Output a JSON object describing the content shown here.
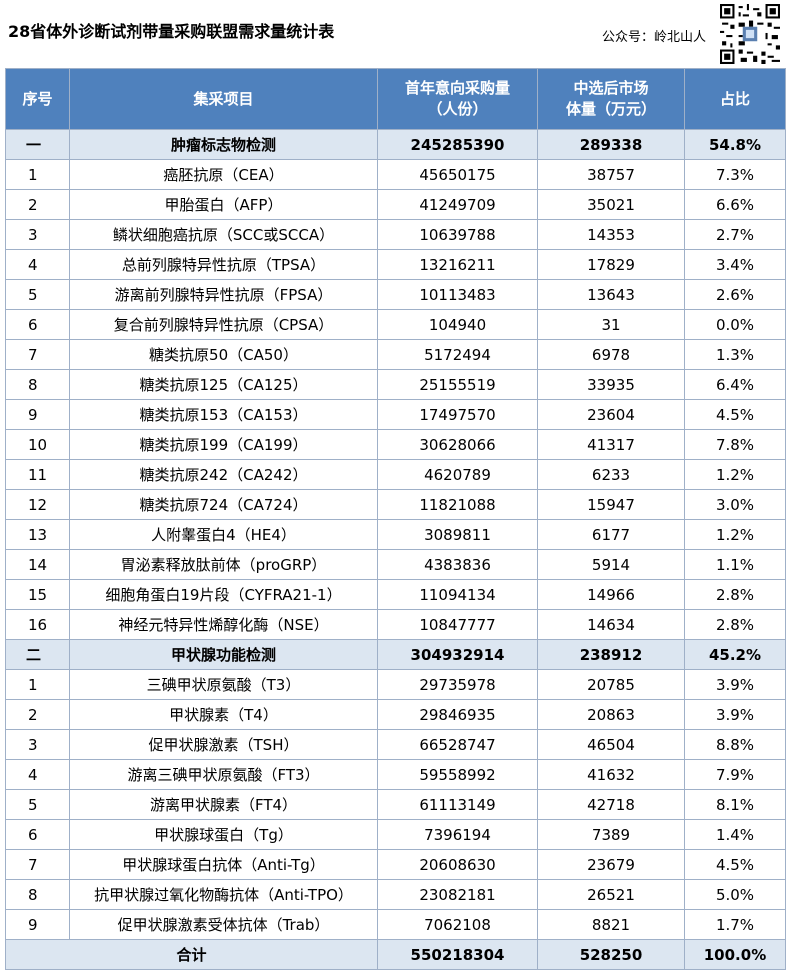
{
  "title": "28省体外诊断试剂带量采购联盟需求量统计表",
  "account": "公众号：岭北山人",
  "headers": {
    "seq": "序号",
    "item": "集采项目",
    "demand_line1": "首年意向采购量",
    "demand_line2": "（人份）",
    "market_line1": "中选后市场",
    "market_line2": "体量（万元）",
    "share": "占比"
  },
  "sections": [
    {
      "seq": "一",
      "item": "肿瘤标志物检测",
      "demand": "245285390",
      "market": "289338",
      "share": "54.8%",
      "rows": [
        {
          "seq": "1",
          "item": "癌胚抗原（CEA）",
          "demand": "45650175",
          "market": "38757",
          "share": "7.3%"
        },
        {
          "seq": "2",
          "item": "甲胎蛋白（AFP）",
          "demand": "41249709",
          "market": "35021",
          "share": "6.6%"
        },
        {
          "seq": "3",
          "item": "鳞状细胞癌抗原（SCC或SCCA）",
          "demand": "10639788",
          "market": "14353",
          "share": "2.7%"
        },
        {
          "seq": "4",
          "item": "总前列腺特异性抗原（TPSA）",
          "demand": "13216211",
          "market": "17829",
          "share": "3.4%"
        },
        {
          "seq": "5",
          "item": "游离前列腺特异性抗原（FPSA）",
          "demand": "10113483",
          "market": "13643",
          "share": "2.6%"
        },
        {
          "seq": "6",
          "item": "复合前列腺特异性抗原（CPSA）",
          "demand": "104940",
          "market": "31",
          "share": "0.0%"
        },
        {
          "seq": "7",
          "item": "糖类抗原50（CA50）",
          "demand": "5172494",
          "market": "6978",
          "share": "1.3%"
        },
        {
          "seq": "8",
          "item": "糖类抗原125（CA125）",
          "demand": "25155519",
          "market": "33935",
          "share": "6.4%"
        },
        {
          "seq": "9",
          "item": "糖类抗原153（CA153）",
          "demand": "17497570",
          "market": "23604",
          "share": "4.5%"
        },
        {
          "seq": "10",
          "item": "糖类抗原199（CA199）",
          "demand": "30628066",
          "market": "41317",
          "share": "7.8%"
        },
        {
          "seq": "11",
          "item": "糖类抗原242（CA242）",
          "demand": "4620789",
          "market": "6233",
          "share": "1.2%"
        },
        {
          "seq": "12",
          "item": "糖类抗原724（CA724）",
          "demand": "11821088",
          "market": "15947",
          "share": "3.0%"
        },
        {
          "seq": "13",
          "item": "人附睾蛋白4（HE4）",
          "demand": "3089811",
          "market": "6177",
          "share": "1.2%"
        },
        {
          "seq": "14",
          "item": "胃泌素释放肽前体（proGRP）",
          "demand": "4383836",
          "market": "5914",
          "share": "1.1%"
        },
        {
          "seq": "15",
          "item": "细胞角蛋白19片段（CYFRA21-1）",
          "demand": "11094134",
          "market": "14966",
          "share": "2.8%"
        },
        {
          "seq": "16",
          "item": "神经元特异性烯醇化酶（NSE）",
          "demand": "10847777",
          "market": "14634",
          "share": "2.8%"
        }
      ]
    },
    {
      "seq": "二",
      "item": "甲状腺功能检测",
      "demand": "304932914",
      "market": "238912",
      "share": "45.2%",
      "rows": [
        {
          "seq": "1",
          "item": "三碘甲状原氨酸（T3）",
          "demand": "29735978",
          "market": "20785",
          "share": "3.9%"
        },
        {
          "seq": "2",
          "item": "甲状腺素（T4）",
          "demand": "29846935",
          "market": "20863",
          "share": "3.9%"
        },
        {
          "seq": "3",
          "item": "促甲状腺激素（TSH）",
          "demand": "66528747",
          "market": "46504",
          "share": "8.8%"
        },
        {
          "seq": "4",
          "item": "游离三碘甲状原氨酸（FT3）",
          "demand": "59558992",
          "market": "41632",
          "share": "7.9%"
        },
        {
          "seq": "5",
          "item": "游离甲状腺素（FT4）",
          "demand": "61113149",
          "market": "42718",
          "share": "8.1%"
        },
        {
          "seq": "6",
          "item": "甲状腺球蛋白（Tg）",
          "demand": "7396194",
          "market": "7389",
          "share": "1.4%"
        },
        {
          "seq": "7",
          "item": "甲状腺球蛋白抗体（Anti-Tg）",
          "demand": "20608630",
          "market": "23679",
          "share": "4.5%"
        },
        {
          "seq": "8",
          "item": "抗甲状腺过氧化物酶抗体（Anti-TPO）",
          "demand": "23082181",
          "market": "26521",
          "share": "5.0%"
        },
        {
          "seq": "9",
          "item": "促甲状腺激素受体抗体（Trab）",
          "demand": "7062108",
          "market": "8821",
          "share": "1.7%"
        }
      ]
    }
  ],
  "total": {
    "label": "合计",
    "demand": "550218304",
    "market": "528250",
    "share": "100.0%"
  },
  "colors": {
    "header_bg": "#4f81bd",
    "section_bg": "#dce6f1",
    "border": "#9fb0c8"
  },
  "qr_icon": "qr-code-icon"
}
